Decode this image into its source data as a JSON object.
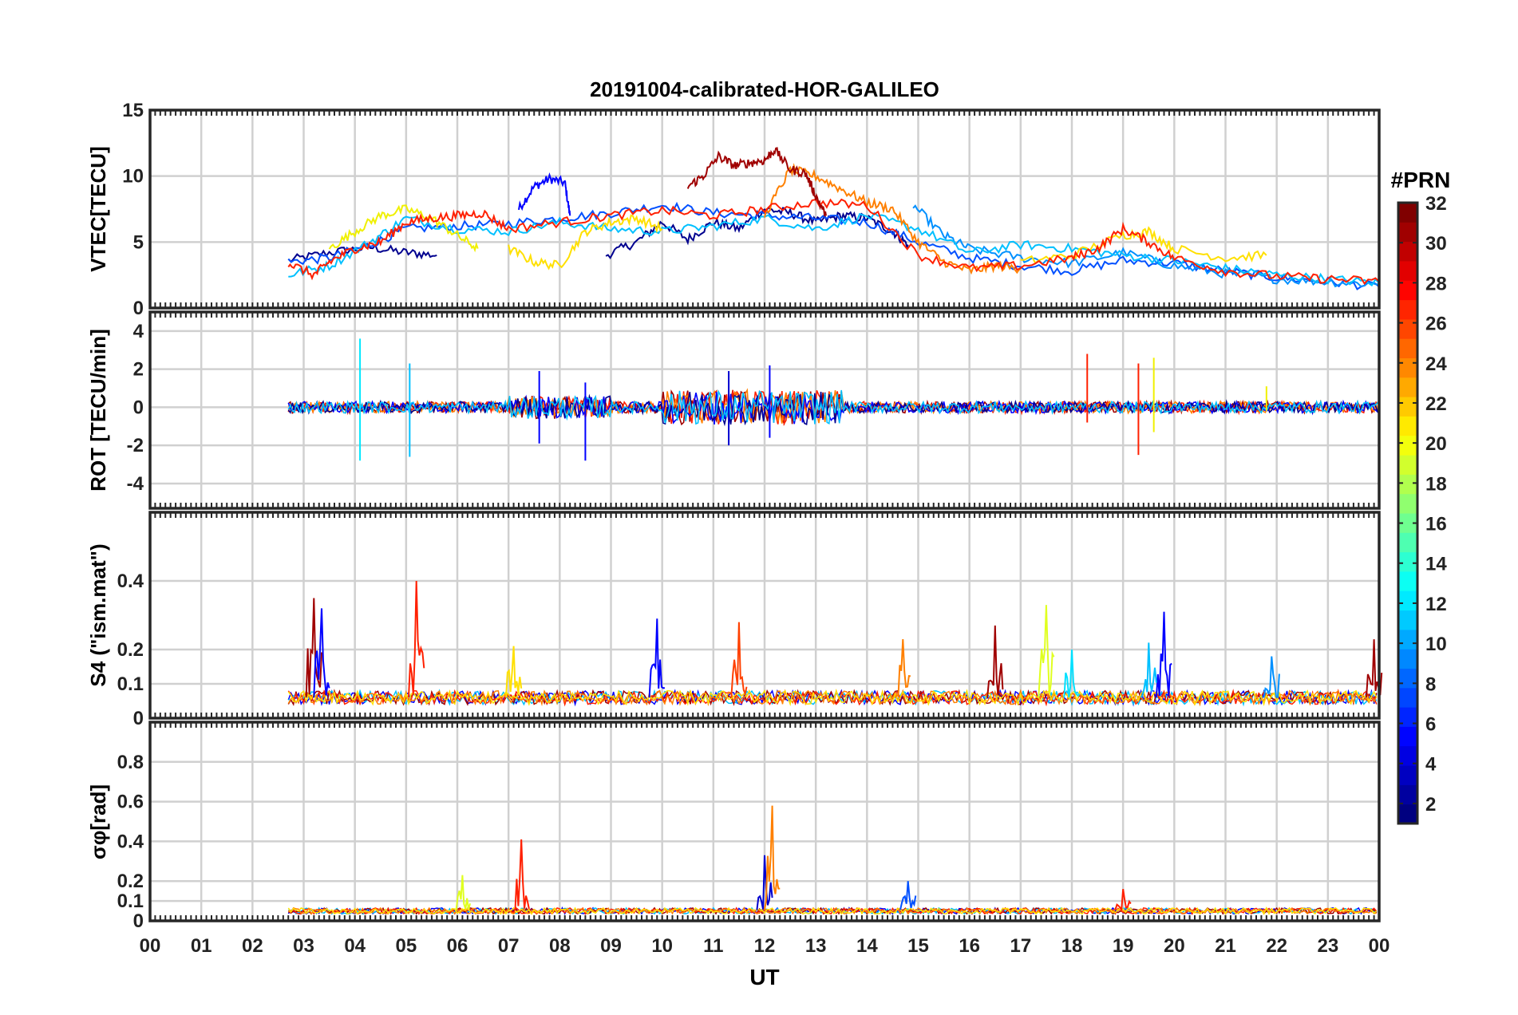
{
  "chart_data": {
    "type": "line",
    "title": "20191004-calibrated-HOR-GALILEO",
    "xlabel": "UT",
    "x_ticks": [
      "00",
      "01",
      "02",
      "03",
      "04",
      "05",
      "06",
      "07",
      "08",
      "09",
      "10",
      "11",
      "12",
      "13",
      "14",
      "15",
      "16",
      "17",
      "18",
      "19",
      "20",
      "21",
      "22",
      "23",
      "00"
    ],
    "xlim": [
      0,
      24
    ],
    "grid": true,
    "colorbar": {
      "label": "#PRN",
      "colormap": "jet",
      "range": [
        1,
        32
      ],
      "ticks": [
        "2",
        "4",
        "6",
        "8",
        "10",
        "12",
        "14",
        "16",
        "18",
        "20",
        "22",
        "24",
        "26",
        "28",
        "30",
        "32"
      ]
    },
    "panels": [
      {
        "ylabel": "VTEC[TECU]",
        "ylim": [
          0,
          15
        ],
        "ytick_labels": [
          "0",
          "5",
          "10",
          "15"
        ],
        "series": [
          {
            "prn": 2,
            "color": "#00008f",
            "x": [
              2.7,
              3.5,
              4.3,
              5.0,
              5.6
            ],
            "y": [
              3.6,
              4.2,
              4.6,
              4.2,
              4.0
            ]
          },
          {
            "prn": 4,
            "color": "#0000ff",
            "x": [
              7.2,
              7.5,
              7.8,
              8.1,
              8.2
            ],
            "y": [
              7.5,
              9.2,
              9.8,
              9.5,
              7.0
            ]
          },
          {
            "prn": 2,
            "color": "#00008f",
            "x": [
              8.9,
              9.5,
              10.0,
              10.5,
              11.0,
              11.5,
              12.0,
              12.5,
              13.0,
              13.5,
              14.0,
              14.5,
              14.8
            ],
            "y": [
              4.0,
              5.0,
              6.5,
              5.2,
              6.5,
              6.0,
              7.5,
              7.2,
              6.5,
              7.0,
              6.8,
              5.8,
              4.8
            ]
          },
          {
            "prn": 6,
            "color": "#0050ff",
            "x": [
              2.7,
              3.5,
              4.3,
              5.0,
              6.0,
              7.0,
              8.0,
              9.0,
              10.0,
              11.0,
              12.0,
              13.0,
              14.0,
              15.0,
              16.0,
              17.0,
              18.0,
              19.0,
              20.0,
              21.0,
              22.0,
              23.0,
              24.0
            ],
            "y": [
              3.5,
              3.8,
              4.8,
              6.0,
              6.2,
              6.4,
              6.8,
              7.2,
              7.8,
              7.2,
              7.0,
              6.8,
              6.5,
              5.0,
              3.8,
              3.2,
              2.8,
              3.6,
              3.4,
              2.8,
              2.3,
              2.0,
              1.6
            ]
          },
          {
            "prn": 10,
            "color": "#0090ff",
            "x": [
              14.9,
              15.5,
              16.0,
              17.0,
              18.0,
              19.0,
              20.0,
              21.0,
              22.0,
              23.0,
              24.0
            ],
            "y": [
              7.8,
              5.5,
              4.5,
              3.8,
              3.4,
              4.2,
              3.2,
              2.6,
              2.2,
              2.0,
              1.8
            ]
          },
          {
            "prn": 12,
            "color": "#00c0ff",
            "x": [
              2.7,
              3.5,
              4.3,
              5.0,
              6.0,
              7.0,
              8.0,
              9.0,
              10.0,
              11.0,
              12.0,
              13.0,
              14.0,
              15.0,
              16.0,
              17.0,
              18.0,
              19.0,
              20.0,
              21.0,
              22.0,
              23.0,
              24.0
            ],
            "y": [
              2.5,
              3.2,
              5.0,
              6.8,
              6.0,
              5.8,
              6.5,
              6.0,
              5.8,
              6.2,
              6.8,
              6.0,
              7.0,
              6.0,
              4.2,
              4.8,
              4.5,
              4.0,
              3.6,
              3.0,
              2.5,
              2.2,
              1.9
            ]
          },
          {
            "prn": 20,
            "color": "#f0f000",
            "x": [
              3.5,
              4.0,
              4.5,
              5.0,
              5.5,
              6.0,
              6.4
            ],
            "y": [
              4.5,
              5.8,
              7.0,
              7.5,
              6.8,
              5.5,
              4.5
            ]
          },
          {
            "prn": 21,
            "color": "#ffe000",
            "x": [
              7.0,
              7.5,
              8.0,
              8.5,
              9.0,
              9.5,
              10.0
            ],
            "y": [
              4.5,
              3.5,
              3.2,
              5.8,
              6.5,
              6.8,
              6.0
            ]
          },
          {
            "prn": 21,
            "color": "#ffe000",
            "x": [
              17.0,
              18.0,
              19.0,
              19.5,
              20.0,
              21.0,
              21.8
            ],
            "y": [
              3.5,
              4.0,
              5.5,
              5.8,
              4.5,
              3.8,
              4.0
            ]
          },
          {
            "prn": 24,
            "color": "#ff8000",
            "x": [
              12.0,
              12.5,
              13.0,
              13.5,
              14.0,
              14.5,
              15.0,
              15.5,
              16.0,
              16.5,
              17.0
            ],
            "y": [
              7.0,
              10.5,
              10.0,
              9.0,
              8.0,
              7.5,
              5.0,
              3.5,
              2.8,
              3.2,
              3.0
            ]
          },
          {
            "prn": 27,
            "color": "#ff2000",
            "x": [
              2.7,
              3.2,
              3.5,
              4.0,
              4.5,
              5.0,
              5.5,
              6.0,
              6.5,
              7.0,
              8.0,
              9.0,
              10.0,
              11.0,
              12.0,
              13.0,
              14.0,
              15.0,
              16.0,
              17.0,
              18.0,
              18.5,
              19.0,
              19.5,
              20.0,
              21.0,
              22.0,
              23.0,
              24.0
            ],
            "y": [
              3.4,
              2.5,
              3.5,
              4.5,
              5.0,
              6.5,
              6.8,
              7.0,
              7.2,
              6.0,
              6.5,
              7.0,
              7.4,
              7.0,
              7.5,
              8.0,
              7.8,
              4.0,
              3.0,
              3.2,
              3.8,
              4.5,
              6.0,
              5.0,
              3.8,
              2.8,
              2.4,
              2.2,
              2.0
            ]
          },
          {
            "prn": 31,
            "color": "#a00000",
            "x": [
              10.5,
              10.8,
              11.1,
              11.4,
              11.7,
              12.0,
              12.2,
              12.5,
              12.8,
              13.0,
              13.2
            ],
            "y": [
              9.2,
              10.0,
              11.5,
              10.8,
              11.0,
              11.2,
              12.0,
              10.5,
              10.2,
              8.5,
              7.0
            ]
          }
        ]
      },
      {
        "ylabel": "ROT [TECU/min]",
        "ylim": [
          -5.3,
          5.0
        ],
        "ytick_labels": [
          "-4",
          "-2",
          "0",
          "2",
          "4"
        ],
        "spikes": [
          {
            "x": 4.1,
            "ymin": -2.8,
            "ymax": 3.6,
            "color": "#00e8ff"
          },
          {
            "x": 5.07,
            "ymin": -2.6,
            "ymax": 2.3,
            "color": "#00c0ff"
          },
          {
            "x": 7.6,
            "ymin": -1.9,
            "ymax": 1.9,
            "color": "#0000ff"
          },
          {
            "x": 8.5,
            "ymin": -2.8,
            "ymax": 1.3,
            "color": "#0000ff"
          },
          {
            "x": 11.3,
            "ymin": -2.0,
            "ymax": 1.9,
            "color": "#0000d0"
          },
          {
            "x": 12.1,
            "ymin": -1.6,
            "ymax": 2.2,
            "color": "#0000ff"
          },
          {
            "x": 18.3,
            "ymin": -0.8,
            "ymax": 2.8,
            "color": "#ff2000"
          },
          {
            "x": 19.3,
            "ymin": -2.5,
            "ymax": 2.3,
            "color": "#ff2000"
          },
          {
            "x": 19.6,
            "ymin": -1.3,
            "ymax": 2.6,
            "color": "#f0f000"
          },
          {
            "x": 21.8,
            "ymin": -0.2,
            "ymax": 1.1,
            "color": "#f0f000"
          }
        ]
      },
      {
        "ylabel": "S4 (\"ism.mat\")",
        "ylim": [
          0,
          0.6
        ],
        "ytick_labels": [
          "0",
          "0.1",
          "0.2",
          "0.4"
        ],
        "peaks": [
          {
            "x": 3.2,
            "y": 0.35,
            "color": "#a00000"
          },
          {
            "x": 3.35,
            "y": 0.32,
            "color": "#0000ff"
          },
          {
            "x": 5.2,
            "y": 0.4,
            "color": "#ff2000"
          },
          {
            "x": 7.1,
            "y": 0.21,
            "color": "#ffe000"
          },
          {
            "x": 9.9,
            "y": 0.29,
            "color": "#0000ff"
          },
          {
            "x": 11.5,
            "y": 0.28,
            "color": "#ff4000"
          },
          {
            "x": 14.7,
            "y": 0.23,
            "color": "#ff8000"
          },
          {
            "x": 16.5,
            "y": 0.27,
            "color": "#a00000"
          },
          {
            "x": 17.5,
            "y": 0.33,
            "color": "#e0ff20"
          },
          {
            "x": 18.0,
            "y": 0.2,
            "color": "#00e0ff"
          },
          {
            "x": 19.8,
            "y": 0.31,
            "color": "#0000ff"
          },
          {
            "x": 19.5,
            "y": 0.22,
            "color": "#00c0ff"
          },
          {
            "x": 21.9,
            "y": 0.18,
            "color": "#0090ff"
          },
          {
            "x": 23.9,
            "y": 0.23,
            "color": "#a00000"
          }
        ]
      },
      {
        "ylabel": "σφ[rad]",
        "ylim": [
          0,
          1.0
        ],
        "ytick_labels": [
          "0",
          "0.1",
          "0.2",
          "0.4",
          "0.6",
          "0.8"
        ],
        "peaks": [
          {
            "x": 6.1,
            "y": 0.23,
            "color": "#e0ff20"
          },
          {
            "x": 7.25,
            "y": 0.41,
            "color": "#ff2000"
          },
          {
            "x": 12.0,
            "y": 0.33,
            "color": "#0000d0"
          },
          {
            "x": 12.15,
            "y": 0.58,
            "color": "#ff8000"
          },
          {
            "x": 14.8,
            "y": 0.2,
            "color": "#0050ff"
          },
          {
            "x": 19.0,
            "y": 0.16,
            "color": "#ff2000"
          }
        ]
      }
    ]
  }
}
